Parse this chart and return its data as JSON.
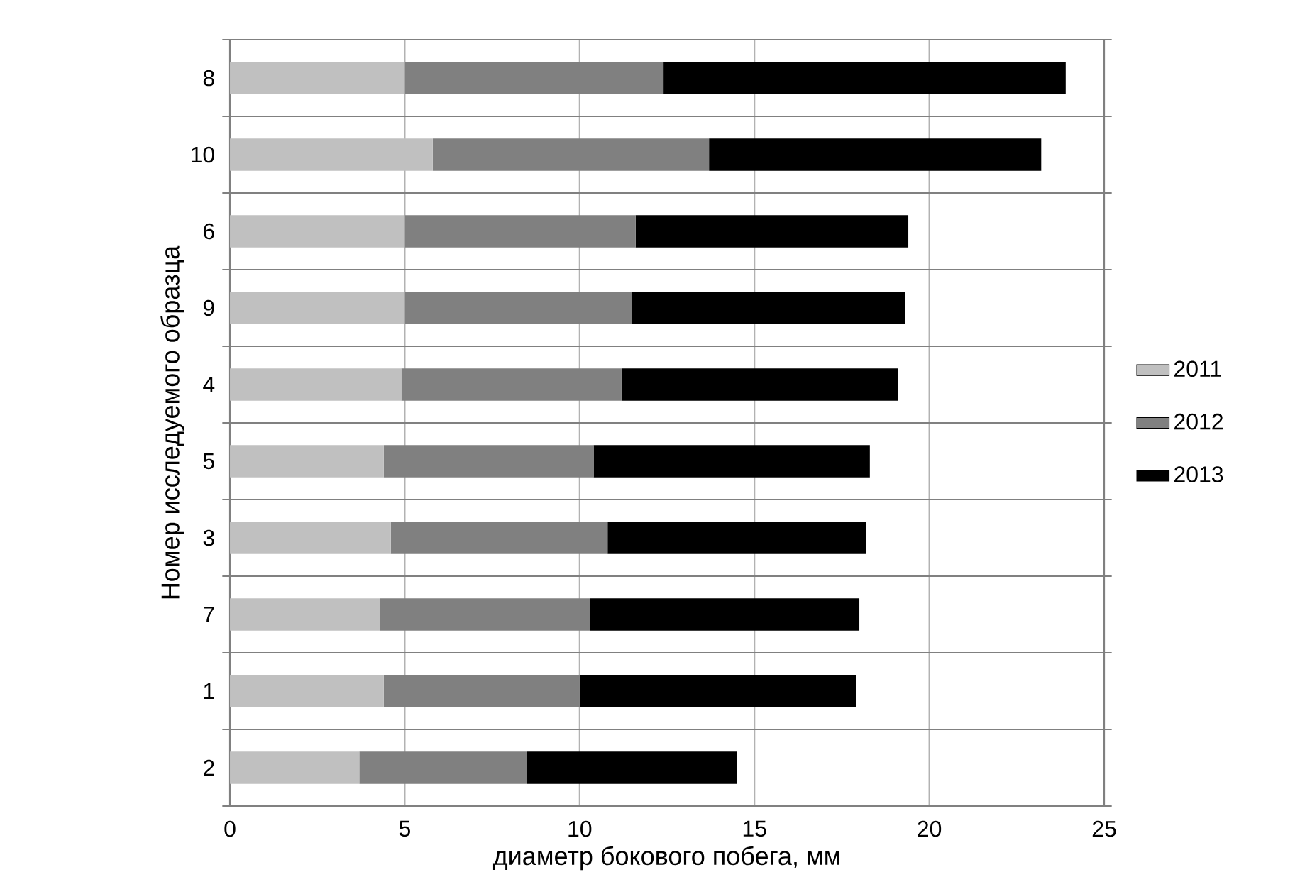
{
  "chart_data": {
    "type": "bar",
    "orientation": "horizontal",
    "stacked": true,
    "xlabel": "диаметр бокового побега, мм",
    "ylabel": "Номер  исследуемого образца",
    "categories": [
      "8",
      "10",
      "6",
      "9",
      "4",
      "5",
      "3",
      "7",
      "1",
      "2"
    ],
    "series": [
      {
        "name": "2011",
        "color": "#c0c0c0",
        "values": [
          5.0,
          5.8,
          5.0,
          5.0,
          4.9,
          4.4,
          4.6,
          4.3,
          4.4,
          3.7
        ]
      },
      {
        "name": "2012",
        "color": "#808080",
        "values": [
          7.4,
          7.9,
          6.6,
          6.5,
          6.3,
          6.0,
          6.2,
          6.0,
          5.6,
          4.8
        ]
      },
      {
        "name": "2013",
        "color": "#000000",
        "values": [
          11.5,
          9.5,
          7.8,
          7.8,
          7.9,
          7.9,
          7.4,
          7.7,
          7.9,
          6.0
        ]
      }
    ],
    "xlim": [
      0,
      25
    ],
    "xticks": [
      0,
      5,
      10,
      15,
      20,
      25
    ],
    "grid": true,
    "legend": "right"
  }
}
